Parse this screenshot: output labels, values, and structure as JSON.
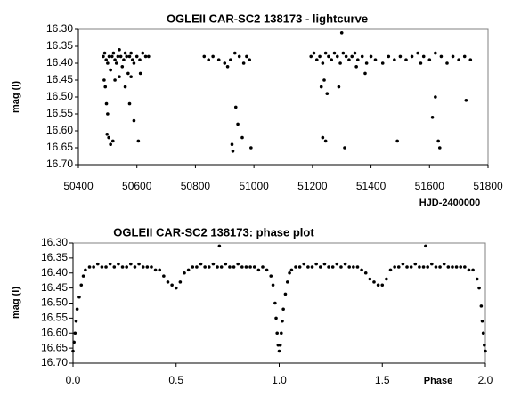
{
  "chart_data": [
    {
      "type": "scatter",
      "title": "OGLEII CAR-SC2 138173 - lightcurve",
      "x_label": "HJD-2400000",
      "y_label": "mag (I)",
      "color": "#000000",
      "y_inverted": true,
      "xlim": [
        50400,
        51800
      ],
      "xticks": [
        50400,
        50600,
        50800,
        51000,
        51200,
        51400,
        51600,
        51800
      ],
      "ylim": [
        16.3,
        16.7
      ],
      "yticks": [
        {
          "value": 16.3,
          "label": "16.30"
        },
        {
          "value": 16.35,
          "label": "16.35"
        },
        {
          "value": 16.4,
          "label": "16.40"
        },
        {
          "value": 16.45,
          "label": "16.45"
        },
        {
          "value": 16.5,
          "label": "16.50"
        },
        {
          "value": 16.55,
          "label": "16.55"
        },
        {
          "value": 16.6,
          "label": "16.60"
        },
        {
          "value": 16.65,
          "label": "16.65"
        },
        {
          "value": 16.7,
          "label": "16.70"
        }
      ],
      "x": [
        50485,
        50490,
        50495,
        50500,
        50505,
        50510,
        50515,
        50520,
        50525,
        50530,
        50535,
        50540,
        50545,
        50550,
        50555,
        50560,
        50565,
        50570,
        50575,
        50580,
        50585,
        50590,
        50600,
        50610,
        50620,
        50630,
        50640,
        50488,
        50492,
        50496,
        50500,
        50498,
        50504,
        50510,
        50518,
        50525,
        50540,
        50560,
        50575,
        50580,
        50590,
        50605,
        50612,
        50830,
        50845,
        50860,
        50880,
        50900,
        50920,
        50935,
        50950,
        50965,
        50975,
        50985,
        50925,
        50928,
        50938,
        50945,
        50960,
        50990,
        50910,
        51195,
        51205,
        51215,
        51225,
        51235,
        51245,
        51255,
        51265,
        51275,
        51285,
        51295,
        51305,
        51315,
        51325,
        51335,
        51345,
        51355,
        51370,
        51385,
        51400,
        51415,
        51300,
        51230,
        51240,
        51250,
        51290,
        51235,
        51245,
        51310,
        51350,
        51380,
        51440,
        51460,
        51480,
        51500,
        51520,
        51540,
        51560,
        51580,
        51600,
        51620,
        51640,
        51660,
        51680,
        51700,
        51720,
        51740,
        51490,
        51620,
        51610,
        51630,
        51635,
        51570,
        51725
      ],
      "values": [
        16.38,
        16.37,
        16.39,
        16.4,
        16.38,
        16.42,
        16.38,
        16.37,
        16.39,
        16.4,
        16.38,
        16.36,
        16.38,
        16.41,
        16.39,
        16.37,
        16.38,
        16.43,
        16.38,
        16.37,
        16.39,
        16.4,
        16.38,
        16.39,
        16.37,
        16.38,
        16.38,
        16.45,
        16.47,
        16.52,
        16.55,
        16.61,
        16.62,
        16.64,
        16.63,
        16.45,
        16.44,
        16.47,
        16.52,
        16.44,
        16.57,
        16.63,
        16.43,
        16.38,
        16.39,
        16.38,
        16.39,
        16.4,
        16.39,
        16.37,
        16.38,
        16.4,
        16.38,
        16.39,
        16.64,
        16.66,
        16.53,
        16.58,
        16.62,
        16.65,
        16.41,
        16.38,
        16.37,
        16.39,
        16.38,
        16.4,
        16.37,
        16.38,
        16.39,
        16.37,
        16.38,
        16.4,
        16.37,
        16.38,
        16.39,
        16.38,
        16.37,
        16.39,
        16.38,
        16.4,
        16.38,
        16.39,
        16.31,
        16.47,
        16.45,
        16.49,
        16.47,
        16.62,
        16.63,
        16.65,
        16.41,
        16.43,
        16.4,
        16.38,
        16.39,
        16.38,
        16.39,
        16.38,
        16.37,
        16.38,
        16.39,
        16.37,
        16.38,
        16.4,
        16.38,
        16.39,
        16.38,
        16.39,
        16.63,
        16.5,
        16.56,
        16.63,
        16.65,
        16.4,
        16.51
      ]
    },
    {
      "type": "scatter",
      "title": "OGLEII CAR-SC2 138173: phase plot",
      "x_label": "Phase",
      "y_label": "mag (I)",
      "color": "#000000",
      "y_inverted": true,
      "xlim": [
        0,
        2
      ],
      "xticks": [
        {
          "value": 0,
          "label": "0.0"
        },
        {
          "value": 0.5,
          "label": "0.5"
        },
        {
          "value": 1,
          "label": "1.0"
        },
        {
          "value": 1.5,
          "label": "1.5"
        },
        {
          "value": 2,
          "label": "2.0"
        }
      ],
      "ylim": [
        16.3,
        16.7
      ],
      "yticks": [
        {
          "value": 16.3,
          "label": "16.30"
        },
        {
          "value": 16.35,
          "label": "16.35"
        },
        {
          "value": 16.4,
          "label": "16.40"
        },
        {
          "value": 16.45,
          "label": "16.45"
        },
        {
          "value": 16.5,
          "label": "16.50"
        },
        {
          "value": 16.55,
          "label": "16.55"
        },
        {
          "value": 16.6,
          "label": "16.60"
        },
        {
          "value": 16.65,
          "label": "16.65"
        },
        {
          "value": 16.7,
          "label": "16.70"
        }
      ],
      "x": [
        0,
        0.005,
        0.01,
        0.015,
        0.02,
        0.03,
        0.04,
        0.05,
        0.06,
        0.08,
        0.1,
        0.12,
        0.14,
        0.16,
        0.18,
        0.2,
        0.22,
        0.24,
        0.26,
        0.28,
        0.3,
        0.32,
        0.34,
        0.36,
        0.38,
        0.4,
        0.42,
        0.44,
        0.46,
        0.48,
        0.5,
        0.52,
        0.54,
        0.56,
        0.58,
        0.6,
        0.62,
        0.64,
        0.66,
        0.68,
        0.7,
        0.71,
        0.72,
        0.74,
        0.76,
        0.78,
        0.8,
        0.82,
        0.84,
        0.86,
        0.88,
        0.9,
        0.92,
        0.94,
        0.96,
        0.97,
        0.98,
        0.985,
        0.99,
        0.995,
        1,
        1.005,
        1.01,
        1.015,
        1.02,
        1.03,
        1.04,
        1.05,
        1.06,
        1.08,
        1.1,
        1.12,
        1.14,
        1.16,
        1.18,
        1.2,
        1.22,
        1.24,
        1.26,
        1.28,
        1.3,
        1.32,
        1.34,
        1.36,
        1.38,
        1.4,
        1.42,
        1.44,
        1.46,
        1.48,
        1.5,
        1.52,
        1.54,
        1.56,
        1.58,
        1.6,
        1.62,
        1.64,
        1.66,
        1.68,
        1.7,
        1.71,
        1.72,
        1.74,
        1.76,
        1.78,
        1.8,
        1.82,
        1.84,
        1.86,
        1.88,
        1.9,
        1.92,
        1.94,
        1.96,
        1.97,
        1.98,
        1.985,
        1.99,
        1.995,
        2
      ],
      "values": [
        16.66,
        16.63,
        16.6,
        16.56,
        16.52,
        16.48,
        16.44,
        16.41,
        16.39,
        16.38,
        16.38,
        16.37,
        16.38,
        16.38,
        16.37,
        16.38,
        16.37,
        16.38,
        16.38,
        16.37,
        16.38,
        16.37,
        16.38,
        16.38,
        16.38,
        16.39,
        16.39,
        16.41,
        16.43,
        16.44,
        16.45,
        16.43,
        16.4,
        16.39,
        16.38,
        16.38,
        16.37,
        16.38,
        16.38,
        16.37,
        16.38,
        16.31,
        16.38,
        16.37,
        16.38,
        16.38,
        16.37,
        16.38,
        16.38,
        16.38,
        16.38,
        16.39,
        16.38,
        16.39,
        16.41,
        16.44,
        16.5,
        16.55,
        16.6,
        16.64,
        16.66,
        16.64,
        16.6,
        16.56,
        16.52,
        16.47,
        16.43,
        16.4,
        16.39,
        16.38,
        16.38,
        16.37,
        16.38,
        16.38,
        16.37,
        16.38,
        16.37,
        16.38,
        16.38,
        16.37,
        16.38,
        16.37,
        16.38,
        16.38,
        16.38,
        16.39,
        16.4,
        16.42,
        16.43,
        16.44,
        16.44,
        16.42,
        16.39,
        16.38,
        16.38,
        16.37,
        16.38,
        16.38,
        16.37,
        16.38,
        16.38,
        16.31,
        16.38,
        16.37,
        16.38,
        16.38,
        16.37,
        16.38,
        16.38,
        16.38,
        16.38,
        16.38,
        16.39,
        16.39,
        16.42,
        16.45,
        16.51,
        16.56,
        16.6,
        16.64,
        16.66
      ]
    }
  ]
}
